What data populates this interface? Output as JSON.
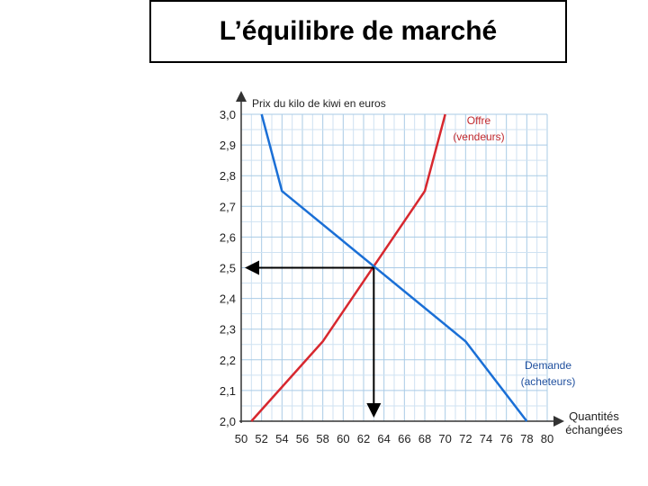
{
  "slide": {
    "title": "L’équilibre de marché"
  },
  "chart_data": {
    "type": "line",
    "ylabel": "Prix du kilo de kiwi en euros",
    "xlabel_line1": "Quantités",
    "xlabel_line2": "échangées",
    "x_ticks": [
      "50",
      "52",
      "54",
      "56",
      "58",
      "60",
      "62",
      "64",
      "66",
      "68",
      "70",
      "72",
      "74",
      "76",
      "78",
      "80"
    ],
    "y_ticks": [
      "3,0",
      "2,9",
      "2,8",
      "2,7",
      "2,6",
      "2,5",
      "2,4",
      "2,3",
      "2,2",
      "2,1",
      "2,0"
    ],
    "xlim": [
      50,
      80
    ],
    "ylim": [
      2.0,
      3.0
    ],
    "grid": true,
    "series": [
      {
        "name_line1": "Offre",
        "name_line2": "(vendeurs)",
        "color": "#d7282f",
        "points": [
          [
            51,
            2.0
          ],
          [
            58,
            2.26
          ],
          [
            68,
            2.75
          ],
          [
            70,
            3.0
          ]
        ]
      },
      {
        "name_line1": "Demande",
        "name_line2": "(acheteurs)",
        "color": "#1a6fd6",
        "points": [
          [
            52,
            3.0
          ],
          [
            54,
            2.75
          ],
          [
            72,
            2.26
          ],
          [
            78,
            2.0
          ]
        ]
      }
    ],
    "equilibrium": {
      "x": 63,
      "y": 2.5,
      "color": "#000000"
    }
  }
}
